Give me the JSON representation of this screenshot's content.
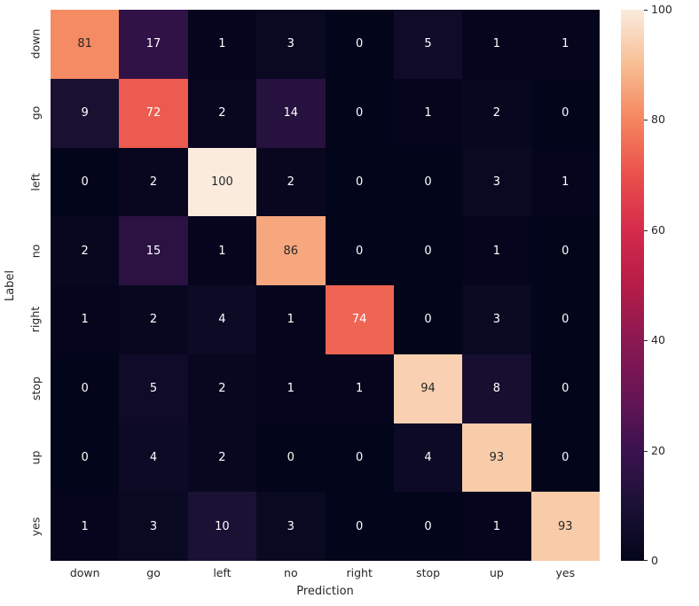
{
  "figure": {
    "background": "#ffffff"
  },
  "chart_data": {
    "type": "heatmap",
    "title": "",
    "xlabel": "Prediction",
    "ylabel": "Label",
    "x_categories": [
      "down",
      "go",
      "left",
      "no",
      "right",
      "stop",
      "up",
      "yes"
    ],
    "y_categories": [
      "down",
      "go",
      "left",
      "no",
      "right",
      "stop",
      "up",
      "yes"
    ],
    "matrix": [
      [
        81,
        17,
        1,
        3,
        0,
        5,
        1,
        1
      ],
      [
        9,
        72,
        2,
        14,
        0,
        1,
        2,
        0
      ],
      [
        0,
        2,
        100,
        2,
        0,
        0,
        3,
        1
      ],
      [
        2,
        15,
        1,
        86,
        0,
        0,
        1,
        0
      ],
      [
        1,
        2,
        4,
        1,
        74,
        0,
        3,
        0
      ],
      [
        0,
        5,
        2,
        1,
        1,
        94,
        8,
        0
      ],
      [
        0,
        4,
        2,
        0,
        0,
        4,
        93,
        0
      ],
      [
        1,
        3,
        10,
        3,
        0,
        0,
        1,
        93
      ]
    ],
    "annotated": true,
    "grid": false,
    "legend_position": "right-colorbar",
    "colorbar": {
      "min": 0,
      "max": 100,
      "ticks": [
        0,
        20,
        40,
        60,
        80,
        100
      ]
    },
    "colormap": {
      "name": "rocket",
      "stops": [
        {
          "t": 0.0,
          "color": "#03051A"
        },
        {
          "t": 0.1,
          "color": "#1B1135"
        },
        {
          "t": 0.2,
          "color": "#3A124E"
        },
        {
          "t": 0.3,
          "color": "#681555"
        },
        {
          "t": 0.4,
          "color": "#8B1852"
        },
        {
          "t": 0.5,
          "color": "#B61C47"
        },
        {
          "t": 0.6,
          "color": "#D52B4C"
        },
        {
          "t": 0.7,
          "color": "#EA504B"
        },
        {
          "t": 0.8,
          "color": "#F5855E"
        },
        {
          "t": 0.9,
          "color": "#F8BE93"
        },
        {
          "t": 1.0,
          "color": "#FAEBDD"
        }
      ]
    },
    "annotation_text_colors": {
      "dark": "#262626",
      "light": "#ffffff"
    }
  }
}
